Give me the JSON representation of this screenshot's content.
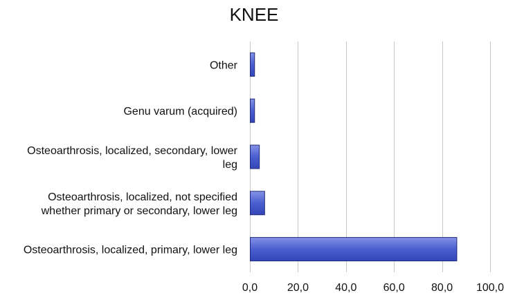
{
  "chart_data": {
    "type": "bar",
    "orientation": "horizontal",
    "title": "KNEE",
    "categories": [
      "Other",
      "Genu varum (acquired)",
      "Osteoarthrosis, localized, secondary, lower leg",
      "Osteoarthrosis, localized, not specified whether primary or secondary, lower leg",
      "Osteoarthrosis, localized, primary, lower leg"
    ],
    "category_lines": [
      [
        "Other"
      ],
      [
        "Genu varum (acquired)"
      ],
      [
        "Osteoarthrosis, localized, secondary, lower",
        "leg"
      ],
      [
        "Osteoarthrosis, localized, not specified",
        "whether primary or secondary, lower leg"
      ],
      [
        "Osteoarthrosis, localized, primary, lower leg"
      ]
    ],
    "values": [
      1.8,
      1.8,
      3.8,
      6.0,
      86.0
    ],
    "xlim": [
      0,
      100
    ],
    "xticks": [
      0,
      20,
      40,
      60,
      80,
      100
    ],
    "xtick_labels": [
      "0,0",
      "20,0",
      "40,0",
      "60,0",
      "80,0",
      "100,0"
    ],
    "xlabel": "",
    "ylabel": "",
    "grid": true,
    "legend": "none",
    "bar_color": "#4a5fd0",
    "bar_edge_color": "#1f2a7a"
  }
}
